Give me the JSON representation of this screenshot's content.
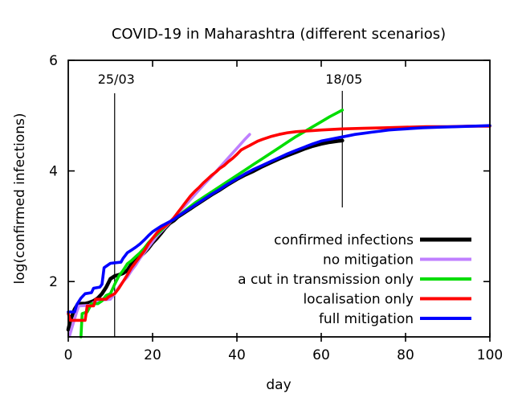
{
  "title": "COVID-19 in Maharashtra (different scenarios)",
  "x_axis": {
    "label": "day",
    "ticks": [
      0,
      20,
      40,
      60,
      80,
      100
    ]
  },
  "y_axis": {
    "label": "log(confirmed infections)",
    "ticks": [
      2,
      4,
      6
    ]
  },
  "annotations": [
    {
      "label": "25/03",
      "day": 11,
      "span": "full"
    },
    {
      "label": "18/05",
      "day": 65,
      "span": "upper"
    }
  ],
  "chart_data": {
    "type": "line",
    "title": "COVID-19 in Maharashtra (different scenarios)",
    "xlabel": "day",
    "ylabel": "log(confirmed infections)",
    "xlim": [
      0,
      100
    ],
    "ylim": [
      1,
      6
    ],
    "x_ticks": [
      0,
      20,
      40,
      60,
      80,
      100
    ],
    "y_ticks": [
      2,
      4,
      6
    ],
    "grid": false,
    "legend_position": "inside lower right",
    "vertical_marker_days": [
      11,
      65
    ],
    "series": [
      {
        "name": "confirmed infections",
        "color": "#000000",
        "width": 4.6,
        "points": [
          [
            0,
            1.13
          ],
          [
            0.5,
            1.3
          ],
          [
            1.5,
            1.5
          ],
          [
            2,
            1.56
          ],
          [
            3,
            1.6
          ],
          [
            4,
            1.6
          ],
          [
            5,
            1.62
          ],
          [
            6,
            1.65
          ],
          [
            7,
            1.7
          ],
          [
            8,
            1.78
          ],
          [
            9,
            1.9
          ],
          [
            10,
            2.05
          ],
          [
            11,
            2.1
          ],
          [
            12,
            2.12
          ],
          [
            13,
            2.15
          ],
          [
            14,
            2.2
          ],
          [
            15,
            2.32
          ],
          [
            16,
            2.38
          ],
          [
            17,
            2.45
          ],
          [
            18,
            2.52
          ],
          [
            19,
            2.6
          ],
          [
            20,
            2.7
          ],
          [
            21,
            2.78
          ],
          [
            22,
            2.87
          ],
          [
            23,
            2.97
          ],
          [
            24,
            3.05
          ],
          [
            25,
            3.1
          ],
          [
            26,
            3.17
          ],
          [
            27,
            3.22
          ],
          [
            28,
            3.27
          ],
          [
            29,
            3.32
          ],
          [
            30,
            3.37
          ],
          [
            32,
            3.47
          ],
          [
            34,
            3.57
          ],
          [
            36,
            3.66
          ],
          [
            38,
            3.76
          ],
          [
            40,
            3.85
          ],
          [
            42,
            3.93
          ],
          [
            44,
            4.0
          ],
          [
            46,
            4.08
          ],
          [
            48,
            4.15
          ],
          [
            50,
            4.22
          ],
          [
            52,
            4.28
          ],
          [
            54,
            4.34
          ],
          [
            56,
            4.4
          ],
          [
            58,
            4.45
          ],
          [
            60,
            4.49
          ],
          [
            62,
            4.52
          ],
          [
            64,
            4.54
          ],
          [
            65,
            4.55
          ]
        ]
      },
      {
        "name": "no mitigation",
        "color": "#bf7fff",
        "width": 3.6,
        "points": [
          [
            0.3,
            1.02
          ],
          [
            1,
            1.2
          ],
          [
            2,
            1.45
          ],
          [
            2.5,
            1.56
          ],
          [
            5,
            1.57
          ],
          [
            6,
            1.62
          ],
          [
            7,
            1.66
          ],
          [
            10,
            1.68
          ],
          [
            11,
            1.78
          ],
          [
            12,
            1.9
          ],
          [
            13,
            2.0
          ],
          [
            14,
            2.08
          ],
          [
            15,
            2.2
          ],
          [
            16,
            2.3
          ],
          [
            17,
            2.42
          ],
          [
            18,
            2.52
          ],
          [
            19,
            2.62
          ],
          [
            20,
            2.72
          ],
          [
            21,
            2.82
          ],
          [
            22,
            2.9
          ],
          [
            23,
            2.98
          ],
          [
            24,
            3.06
          ],
          [
            26,
            3.23
          ],
          [
            28,
            3.4
          ],
          [
            30,
            3.57
          ],
          [
            32,
            3.74
          ],
          [
            34,
            3.9
          ],
          [
            36,
            4.07
          ],
          [
            38,
            4.24
          ],
          [
            40,
            4.41
          ],
          [
            42,
            4.58
          ],
          [
            43,
            4.66
          ]
        ]
      },
      {
        "name": "a cut in transmission only",
        "color": "#00dd00",
        "width": 3.6,
        "points": [
          [
            3,
            1.0
          ],
          [
            3.3,
            1.42
          ],
          [
            4.5,
            1.45
          ],
          [
            5.5,
            1.6
          ],
          [
            7,
            1.6
          ],
          [
            8,
            1.65
          ],
          [
            9,
            1.75
          ],
          [
            10,
            1.78
          ],
          [
            11,
            1.95
          ],
          [
            12,
            2.1
          ],
          [
            13,
            2.2
          ],
          [
            14,
            2.32
          ],
          [
            15,
            2.38
          ],
          [
            16,
            2.45
          ],
          [
            17,
            2.52
          ],
          [
            18,
            2.6
          ],
          [
            19,
            2.7
          ],
          [
            20,
            2.78
          ],
          [
            21,
            2.85
          ],
          [
            22,
            2.92
          ],
          [
            23,
            3.0
          ],
          [
            24,
            3.07
          ],
          [
            26,
            3.18
          ],
          [
            28,
            3.3
          ],
          [
            30,
            3.42
          ],
          [
            32,
            3.52
          ],
          [
            34,
            3.62
          ],
          [
            36,
            3.72
          ],
          [
            38,
            3.82
          ],
          [
            40,
            3.92
          ],
          [
            42,
            4.02
          ],
          [
            44,
            4.12
          ],
          [
            46,
            4.22
          ],
          [
            48,
            4.32
          ],
          [
            50,
            4.42
          ],
          [
            52,
            4.52
          ],
          [
            54,
            4.62
          ],
          [
            56,
            4.71
          ],
          [
            58,
            4.8
          ],
          [
            60,
            4.89
          ],
          [
            62,
            4.98
          ],
          [
            64,
            5.06
          ],
          [
            65,
            5.1
          ]
        ]
      },
      {
        "name": "localisation only",
        "color": "#ff0000",
        "width": 3.6,
        "points": [
          [
            0,
            1.42
          ],
          [
            0.5,
            1.3
          ],
          [
            4,
            1.3
          ],
          [
            4.5,
            1.56
          ],
          [
            6,
            1.56
          ],
          [
            6.5,
            1.68
          ],
          [
            9,
            1.68
          ],
          [
            9.5,
            1.72
          ],
          [
            11,
            1.78
          ],
          [
            12,
            1.88
          ],
          [
            13,
            2.0
          ],
          [
            14,
            2.12
          ],
          [
            15,
            2.25
          ],
          [
            16,
            2.35
          ],
          [
            17,
            2.45
          ],
          [
            18,
            2.55
          ],
          [
            19,
            2.68
          ],
          [
            20,
            2.78
          ],
          [
            21,
            2.88
          ],
          [
            22,
            2.95
          ],
          [
            23,
            3.0
          ],
          [
            24,
            3.07
          ],
          [
            25,
            3.15
          ],
          [
            26,
            3.25
          ],
          [
            27,
            3.35
          ],
          [
            28,
            3.45
          ],
          [
            29,
            3.55
          ],
          [
            30,
            3.63
          ],
          [
            31,
            3.7
          ],
          [
            32,
            3.78
          ],
          [
            33,
            3.85
          ],
          [
            34,
            3.92
          ],
          [
            35,
            3.98
          ],
          [
            36,
            4.05
          ],
          [
            37,
            4.1
          ],
          [
            38,
            4.17
          ],
          [
            39,
            4.23
          ],
          [
            40,
            4.3
          ],
          [
            41,
            4.38
          ],
          [
            42,
            4.42
          ],
          [
            43,
            4.46
          ],
          [
            44,
            4.5
          ],
          [
            45,
            4.54
          ],
          [
            46,
            4.57
          ],
          [
            48,
            4.62
          ],
          [
            50,
            4.66
          ],
          [
            52,
            4.69
          ],
          [
            54,
            4.71
          ],
          [
            56,
            4.72
          ],
          [
            58,
            4.73
          ],
          [
            60,
            4.74
          ],
          [
            65,
            4.76
          ],
          [
            70,
            4.77
          ],
          [
            75,
            4.78
          ],
          [
            80,
            4.79
          ],
          [
            85,
            4.8
          ],
          [
            90,
            4.8
          ],
          [
            95,
            4.81
          ],
          [
            100,
            4.81
          ]
        ]
      },
      {
        "name": "full mitigation",
        "color": "#0000ff",
        "width": 3.6,
        "points": [
          [
            0,
            1.45
          ],
          [
            1.5,
            1.45
          ],
          [
            2,
            1.58
          ],
          [
            3,
            1.7
          ],
          [
            4,
            1.78
          ],
          [
            5.5,
            1.8
          ],
          [
            6,
            1.88
          ],
          [
            7.5,
            1.9
          ],
          [
            8,
            1.95
          ],
          [
            8.5,
            2.25
          ],
          [
            10,
            2.33
          ],
          [
            12.5,
            2.35
          ],
          [
            13,
            2.42
          ],
          [
            14,
            2.52
          ],
          [
            15,
            2.57
          ],
          [
            16,
            2.62
          ],
          [
            17,
            2.68
          ],
          [
            18,
            2.75
          ],
          [
            19,
            2.83
          ],
          [
            20,
            2.9
          ],
          [
            21,
            2.95
          ],
          [
            22,
            3.0
          ],
          [
            23,
            3.04
          ],
          [
            24,
            3.08
          ],
          [
            25,
            3.12
          ],
          [
            26,
            3.18
          ],
          [
            27,
            3.23
          ],
          [
            28,
            3.28
          ],
          [
            30,
            3.38
          ],
          [
            32,
            3.48
          ],
          [
            34,
            3.58
          ],
          [
            36,
            3.67
          ],
          [
            38,
            3.77
          ],
          [
            40,
            3.86
          ],
          [
            42,
            3.95
          ],
          [
            44,
            4.03
          ],
          [
            46,
            4.1
          ],
          [
            48,
            4.17
          ],
          [
            50,
            4.24
          ],
          [
            52,
            4.31
          ],
          [
            54,
            4.37
          ],
          [
            56,
            4.43
          ],
          [
            58,
            4.49
          ],
          [
            60,
            4.54
          ],
          [
            62,
            4.57
          ],
          [
            64,
            4.6
          ],
          [
            66,
            4.63
          ],
          [
            68,
            4.66
          ],
          [
            70,
            4.68
          ],
          [
            72,
            4.7
          ],
          [
            74,
            4.72
          ],
          [
            76,
            4.74
          ],
          [
            78,
            4.75
          ],
          [
            80,
            4.76
          ],
          [
            84,
            4.78
          ],
          [
            88,
            4.79
          ],
          [
            92,
            4.8
          ],
          [
            96,
            4.81
          ],
          [
            100,
            4.82
          ]
        ]
      }
    ]
  }
}
